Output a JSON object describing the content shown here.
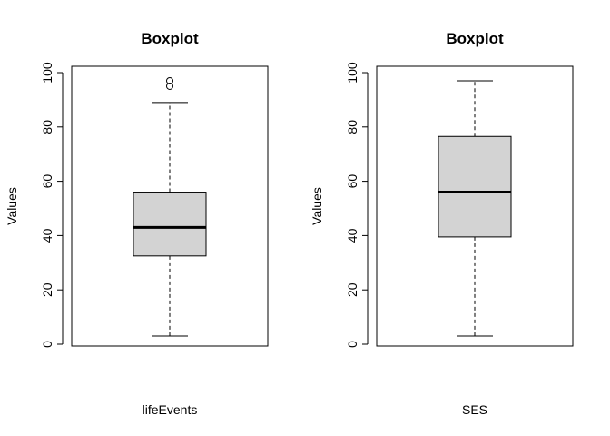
{
  "chart_data": [
    {
      "type": "boxplot",
      "title": "Boxplot",
      "ylabel": "Values",
      "xlabel": "lifeEvents",
      "ylim": [
        0,
        100
      ],
      "yticks": [
        0,
        20,
        40,
        60,
        80,
        100
      ],
      "stats": {
        "min": 3,
        "q1": 32.5,
        "median": 43,
        "q3": 56,
        "max": 89
      },
      "outliers": [
        95,
        97
      ]
    },
    {
      "type": "boxplot",
      "title": "Boxplot",
      "ylabel": "Values",
      "xlabel": "SES",
      "ylim": [
        0,
        100
      ],
      "yticks": [
        0,
        20,
        40,
        60,
        80,
        100
      ],
      "stats": {
        "min": 3,
        "q1": 39.5,
        "median": 56,
        "q3": 76.5,
        "max": 97
      },
      "outliers": []
    }
  ]
}
